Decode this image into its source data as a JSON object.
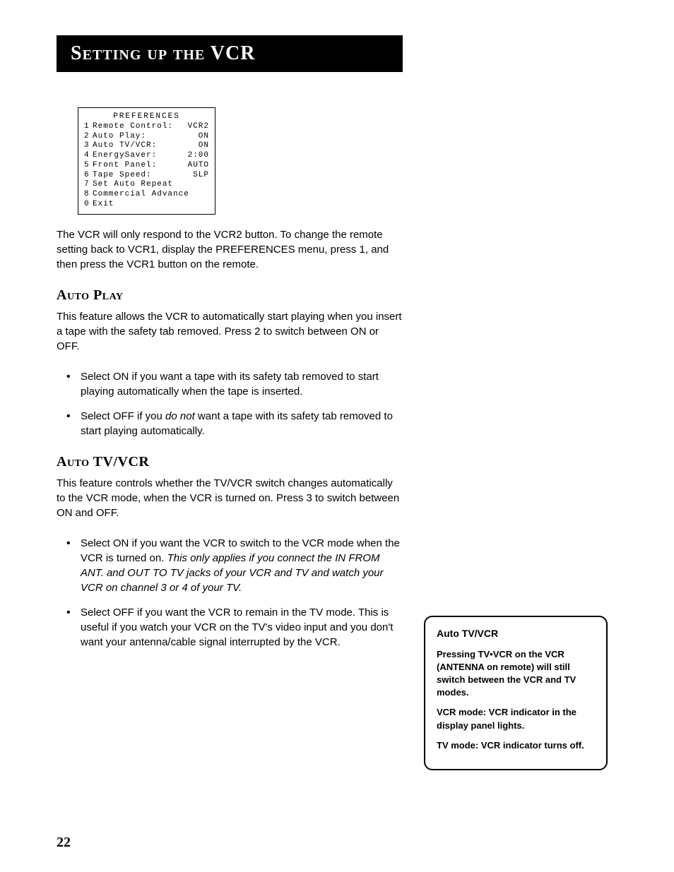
{
  "header": {
    "title": "Setting up the VCR"
  },
  "prefs": {
    "title": "PREFERENCES",
    "rows": [
      {
        "n": "1",
        "label": "Remote Control:",
        "val": "VCR2"
      },
      {
        "n": "2",
        "label": "Auto Play:",
        "val": "ON"
      },
      {
        "n": "3",
        "label": "Auto TV/VCR:",
        "val": "ON"
      },
      {
        "n": "4",
        "label": "EnergySaver:",
        "val": "2:00"
      },
      {
        "n": "5",
        "label": "Front Panel:",
        "val": "AUTO"
      },
      {
        "n": "6",
        "label": "Tape Speed:",
        "val": "SLP"
      },
      {
        "n": "7",
        "label": "Set Auto Repeat",
        "val": ""
      },
      {
        "n": "8",
        "label": "Commercial Advance",
        "val": ""
      },
      {
        "n": "0",
        "label": "Exit",
        "val": ""
      }
    ]
  },
  "intro": "The VCR will only respond to the VCR2 button. To change the remote setting back to VCR1, display the PREFERENCES menu, press 1, and then press the VCR1 button on the remote.",
  "autoplay": {
    "heading": "Auto Play",
    "para": "This feature allows the VCR to automatically start playing when you insert a tape with the safety tab removed. Press 2 to switch between ON or OFF.",
    "b1": "Select ON if you want a tape with its safety tab removed to start playing automatically when the tape is inserted.",
    "b2a": "Select OFF if you ",
    "b2i": "do not",
    "b2b": " want a tape with its safety tab removed to start playing automatically."
  },
  "autotv": {
    "heading": "Auto TV/VCR",
    "para": "This feature controls whether the TV/VCR switch changes automatically to the VCR mode, when the VCR is turned on. Press 3 to switch between ON and OFF.",
    "b1a": "Select ON if you want the VCR to switch to the VCR mode when the VCR is turned on. ",
    "b1i": "This only applies if you connect the IN FROM ANT. and OUT TO TV jacks of your VCR and TV and watch your VCR on channel 3 or 4 of your TV.",
    "b2": "Select OFF if you want the VCR to remain in the TV mode. This is useful if you watch your VCR on the TV's video input and you don't want your antenna/cable signal interrupted by the VCR."
  },
  "sidebar": {
    "heading": "Auto TV/VCR",
    "p1": "Pressing TV•VCR on the VCR (ANTENNA on remote) will still switch between the VCR and TV modes.",
    "p2": "VCR mode:  VCR indicator in the display panel lights.",
    "p3": "TV mode:  VCR indicator turns off."
  },
  "pagenum": "22"
}
